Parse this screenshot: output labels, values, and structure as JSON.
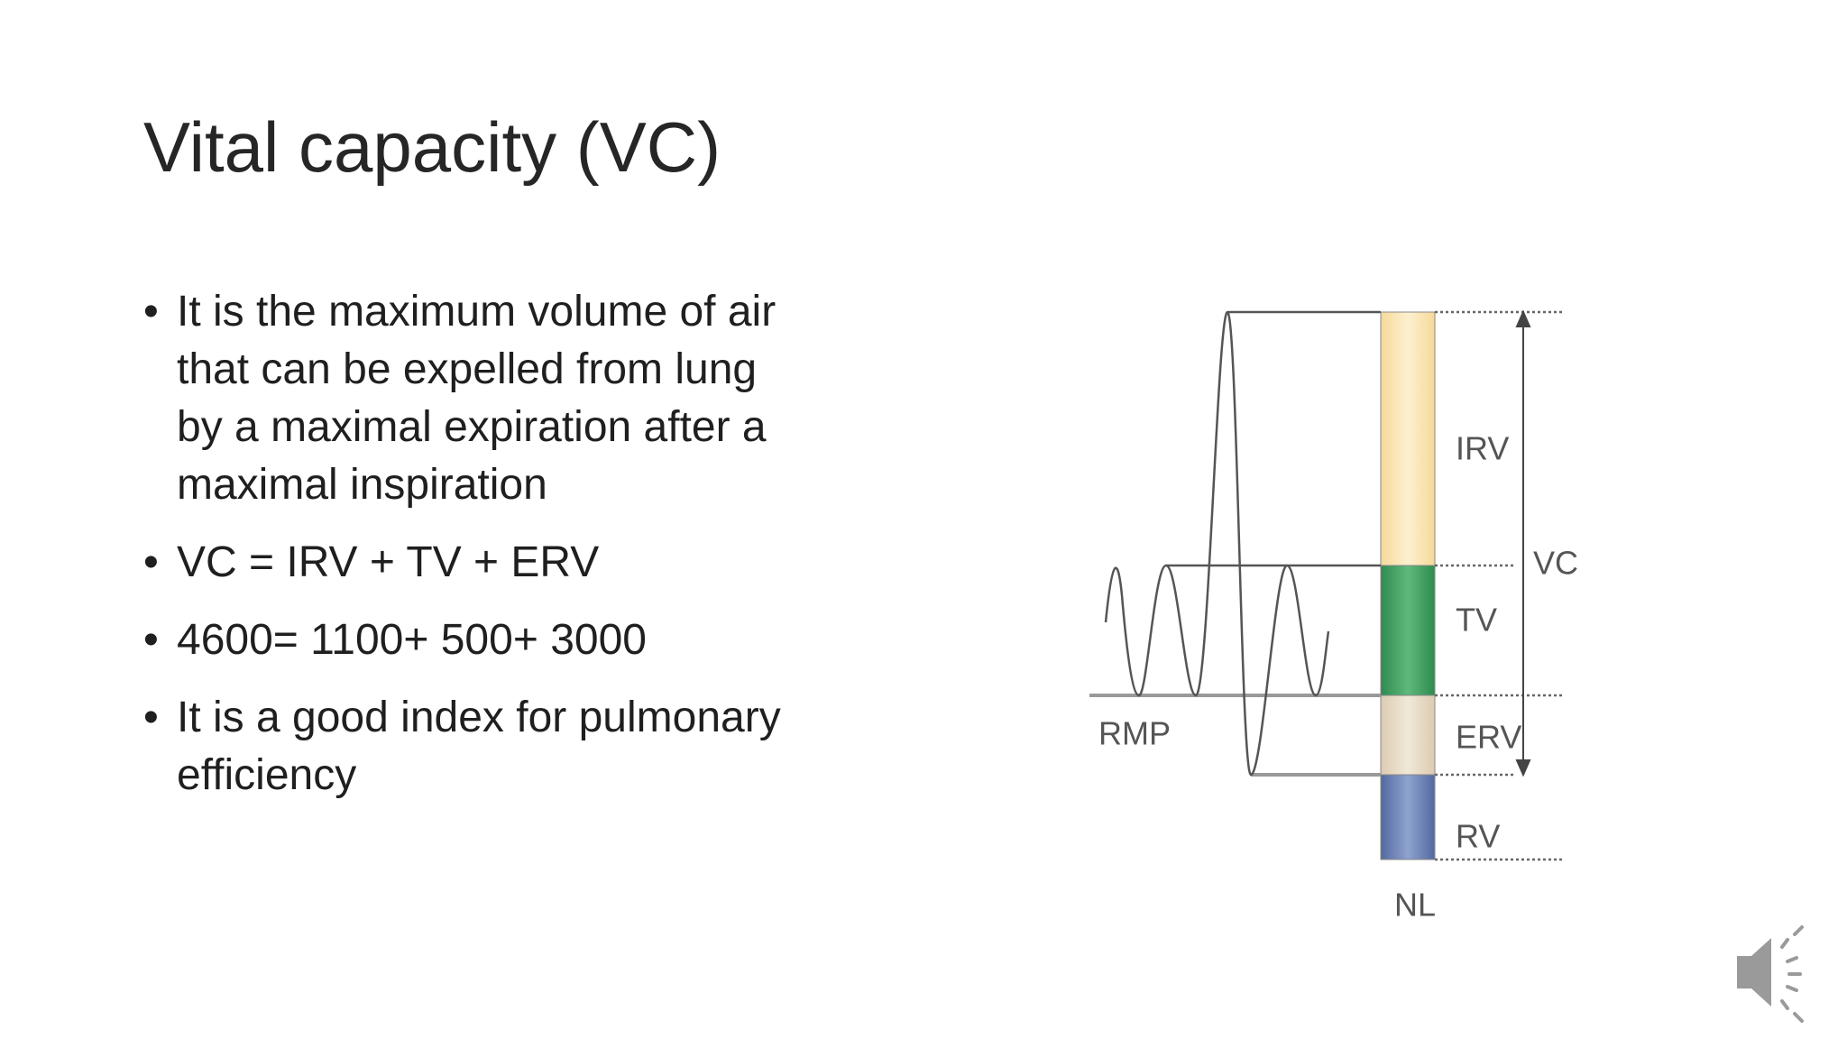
{
  "slide": {
    "title": "Vital capacity (VC)",
    "bullets": [
      [
        "It is the maximum volume of air",
        "that can be expelled from lung",
        "by a maximal expiration after a",
        "maximal inspiration"
      ],
      [
        "VC = IRV + TV + ERV"
      ],
      [
        "4600= 1100+ 500+ 3000"
      ],
      [
        "It is a good index for pulmonary",
        "efficiency"
      ]
    ]
  },
  "diagram": {
    "labels": {
      "irv": "IRV",
      "vc": "VC",
      "tv": "TV",
      "erv": "ERV",
      "rv": "RV",
      "rmp": "RMP",
      "nl": "NL"
    }
  }
}
